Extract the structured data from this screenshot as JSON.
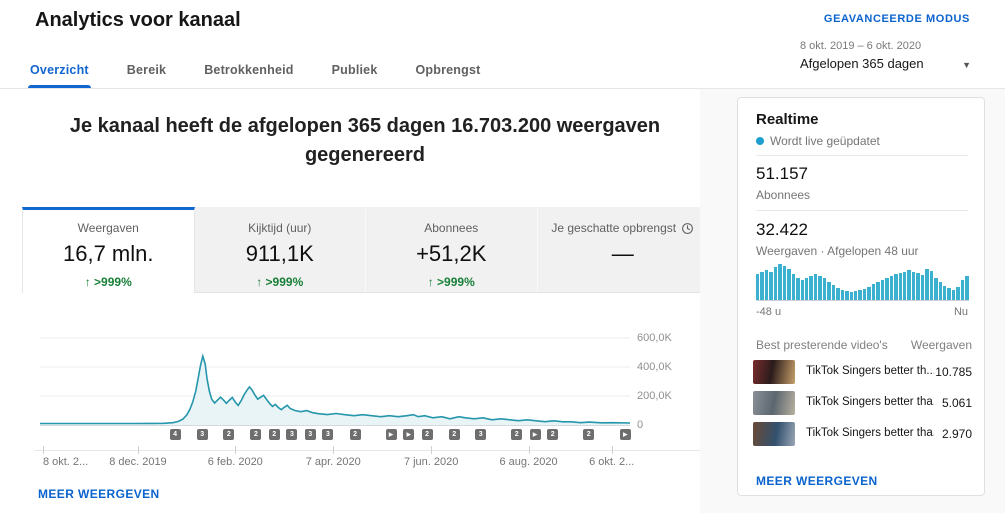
{
  "header": {
    "title": "Analytics voor kanaal",
    "advanced_mode_label": "GEAVANCEERDE MODUS",
    "date_range": "8 okt. 2019 – 6 okt. 2020",
    "period_label": "Afgelopen 365 dagen",
    "tabs": [
      {
        "label": "Overzicht",
        "active": true
      },
      {
        "label": "Bereik",
        "active": false
      },
      {
        "label": "Betrokkenheid",
        "active": false
      },
      {
        "label": "Publiek",
        "active": false
      },
      {
        "label": "Opbrengst",
        "active": false
      }
    ]
  },
  "main": {
    "headline": "Je kanaal heeft de afgelopen 365 dagen 16.703.200 weergaven gegenereerd",
    "metric_cards": [
      {
        "label": "Weergaven",
        "value": "16,7 mln.",
        "delta": "↑ >999%",
        "selected": true
      },
      {
        "label": "Kijktijd (uur)",
        "value": "911,1K",
        "delta": "↑ >999%",
        "selected": false
      },
      {
        "label": "Abonnees",
        "value": "+51,2K",
        "delta": "↑ >999%",
        "selected": false
      },
      {
        "label": "Je geschatte opbrengst",
        "value": "—",
        "delta": "",
        "selected": false,
        "icon": "clock-icon"
      }
    ],
    "show_more_label": "MEER WEERGEVEN"
  },
  "chart_data": {
    "type": "area",
    "series_name": "Weergaven",
    "ylim": [
      0,
      650
    ],
    "grid": true,
    "legend": "none",
    "y_ticks": [
      {
        "value": 600,
        "label": "600,0K"
      },
      {
        "value": 400,
        "label": "400,0K"
      },
      {
        "value": 200,
        "label": "200,0K"
      },
      {
        "value": 0,
        "label": "0"
      }
    ],
    "x_ticks": [
      {
        "pos": 0.005,
        "label": "8 okt. 2...",
        "align": "left"
      },
      {
        "pos": 0.166,
        "label": "8 dec. 2019",
        "align": "center"
      },
      {
        "pos": 0.331,
        "label": "6 feb. 2020",
        "align": "center"
      },
      {
        "pos": 0.497,
        "label": "7 apr. 2020",
        "align": "center"
      },
      {
        "pos": 0.663,
        "label": "7 jun. 2020",
        "align": "center"
      },
      {
        "pos": 0.828,
        "label": "6 aug. 2020",
        "align": "center"
      },
      {
        "pos": 0.969,
        "label": "6 okt. 2...",
        "align": "center"
      }
    ],
    "points_frac_viewsK": [
      [
        0,
        10
      ],
      [
        0.04,
        10
      ],
      [
        0.08,
        10
      ],
      [
        0.12,
        10
      ],
      [
        0.16,
        10
      ],
      [
        0.19,
        11
      ],
      [
        0.21,
        12
      ],
      [
        0.225,
        16
      ],
      [
        0.234,
        24
      ],
      [
        0.242,
        40
      ],
      [
        0.249,
        70
      ],
      [
        0.254,
        108
      ],
      [
        0.259,
        160
      ],
      [
        0.264,
        235
      ],
      [
        0.268,
        320
      ],
      [
        0.272,
        410
      ],
      [
        0.276,
        475
      ],
      [
        0.28,
        420
      ],
      [
        0.283,
        320
      ],
      [
        0.287,
        235
      ],
      [
        0.291,
        178
      ],
      [
        0.296,
        152
      ],
      [
        0.301,
        172
      ],
      [
        0.306,
        192
      ],
      [
        0.311,
        172
      ],
      [
        0.316,
        150
      ],
      [
        0.321,
        172
      ],
      [
        0.326,
        190
      ],
      [
        0.331,
        158
      ],
      [
        0.336,
        135
      ],
      [
        0.341,
        168
      ],
      [
        0.346,
        208
      ],
      [
        0.351,
        242
      ],
      [
        0.355,
        262
      ],
      [
        0.359,
        244
      ],
      [
        0.364,
        208
      ],
      [
        0.369,
        178
      ],
      [
        0.374,
        192
      ],
      [
        0.379,
        205
      ],
      [
        0.384,
        176
      ],
      [
        0.389,
        150
      ],
      [
        0.394,
        128
      ],
      [
        0.399,
        142
      ],
      [
        0.404,
        120
      ],
      [
        0.409,
        106
      ],
      [
        0.414,
        122
      ],
      [
        0.419,
        136
      ],
      [
        0.424,
        114
      ],
      [
        0.432,
        100
      ],
      [
        0.442,
        92
      ],
      [
        0.452,
        99
      ],
      [
        0.462,
        85
      ],
      [
        0.472,
        78
      ],
      [
        0.487,
        72
      ],
      [
        0.502,
        79
      ],
      [
        0.517,
        71
      ],
      [
        0.532,
        64
      ],
      [
        0.547,
        71
      ],
      [
        0.562,
        64
      ],
      [
        0.577,
        57
      ],
      [
        0.592,
        64
      ],
      [
        0.607,
        57
      ],
      [
        0.622,
        64
      ],
      [
        0.633,
        71
      ],
      [
        0.641,
        57
      ],
      [
        0.652,
        64
      ],
      [
        0.666,
        50
      ],
      [
        0.681,
        57
      ],
      [
        0.695,
        43
      ],
      [
        0.71,
        57
      ],
      [
        0.721,
        50
      ],
      [
        0.736,
        43
      ],
      [
        0.751,
        50
      ],
      [
        0.766,
        36
      ],
      [
        0.781,
        43
      ],
      [
        0.796,
        36
      ],
      [
        0.811,
        30
      ],
      [
        0.826,
        36
      ],
      [
        0.841,
        29
      ],
      [
        0.856,
        23
      ],
      [
        0.871,
        29
      ],
      [
        0.886,
        22
      ],
      [
        0.901,
        22
      ],
      [
        0.916,
        16
      ],
      [
        0.931,
        20
      ],
      [
        0.951,
        15
      ],
      [
        0.971,
        16
      ],
      [
        1,
        14
      ]
    ],
    "upload_markers": [
      {
        "pos": 0.229,
        "label": "4"
      },
      {
        "pos": 0.275,
        "label": "3"
      },
      {
        "pos": 0.32,
        "label": "2"
      },
      {
        "pos": 0.366,
        "label": "2"
      },
      {
        "pos": 0.397,
        "label": "2"
      },
      {
        "pos": 0.427,
        "label": "3"
      },
      {
        "pos": 0.458,
        "label": "3"
      },
      {
        "pos": 0.488,
        "label": "3"
      },
      {
        "pos": 0.534,
        "label": "2"
      },
      {
        "pos": 0.595,
        "label": "play"
      },
      {
        "pos": 0.625,
        "label": "play"
      },
      {
        "pos": 0.656,
        "label": "2"
      },
      {
        "pos": 0.702,
        "label": "2"
      },
      {
        "pos": 0.747,
        "label": "3"
      },
      {
        "pos": 0.808,
        "label": "2"
      },
      {
        "pos": 0.839,
        "label": "play"
      },
      {
        "pos": 0.869,
        "label": "2"
      },
      {
        "pos": 0.93,
        "label": "2"
      },
      {
        "pos": 0.992,
        "label": "play"
      }
    ]
  },
  "realtime": {
    "title": "Realtime",
    "live_status": "Wordt live geüpdatet",
    "subscribers_value": "51.157",
    "subscribers_label": "Abonnees",
    "views_value": "32.422",
    "views_label": "Weergaven · Afgelopen 48 uur",
    "axis_left": "-48 u",
    "axis_right": "Nu",
    "bars_pct": [
      72,
      78,
      82,
      78,
      92,
      100,
      95,
      85,
      72,
      62,
      55,
      60,
      68,
      72,
      68,
      62,
      50,
      42,
      32,
      27,
      24,
      22,
      24,
      27,
      30,
      36,
      45,
      50,
      56,
      62,
      68,
      72,
      75,
      78,
      82,
      78,
      75,
      70,
      85,
      80,
      60,
      50,
      40,
      33,
      28,
      35,
      55,
      68
    ]
  },
  "top_videos": {
    "header": "Best presterende video's",
    "views_header": "Weergaven",
    "items": [
      {
        "title": "TikTok Singers better th...",
        "views": "10.785"
      },
      {
        "title": "TikTok Singers better tha...",
        "views": "5.061"
      },
      {
        "title": "TikTok Singers better tha...",
        "views": "2.970"
      }
    ],
    "show_more_label": "MEER WEERGEVEN"
  },
  "colors": {
    "accent_blue": "#1266d1",
    "link_blue": "#0b63ce",
    "delta_green": "#188038",
    "chart_line": "#2596ab",
    "chart_fill": "#e9f4f7",
    "grid_line": "#ececec",
    "baseline": "#aab4b8",
    "realtime_bar": "#3cb1cf",
    "realtime_dot": "#1d9ecf",
    "marker_bg": "#6e6e6e"
  }
}
